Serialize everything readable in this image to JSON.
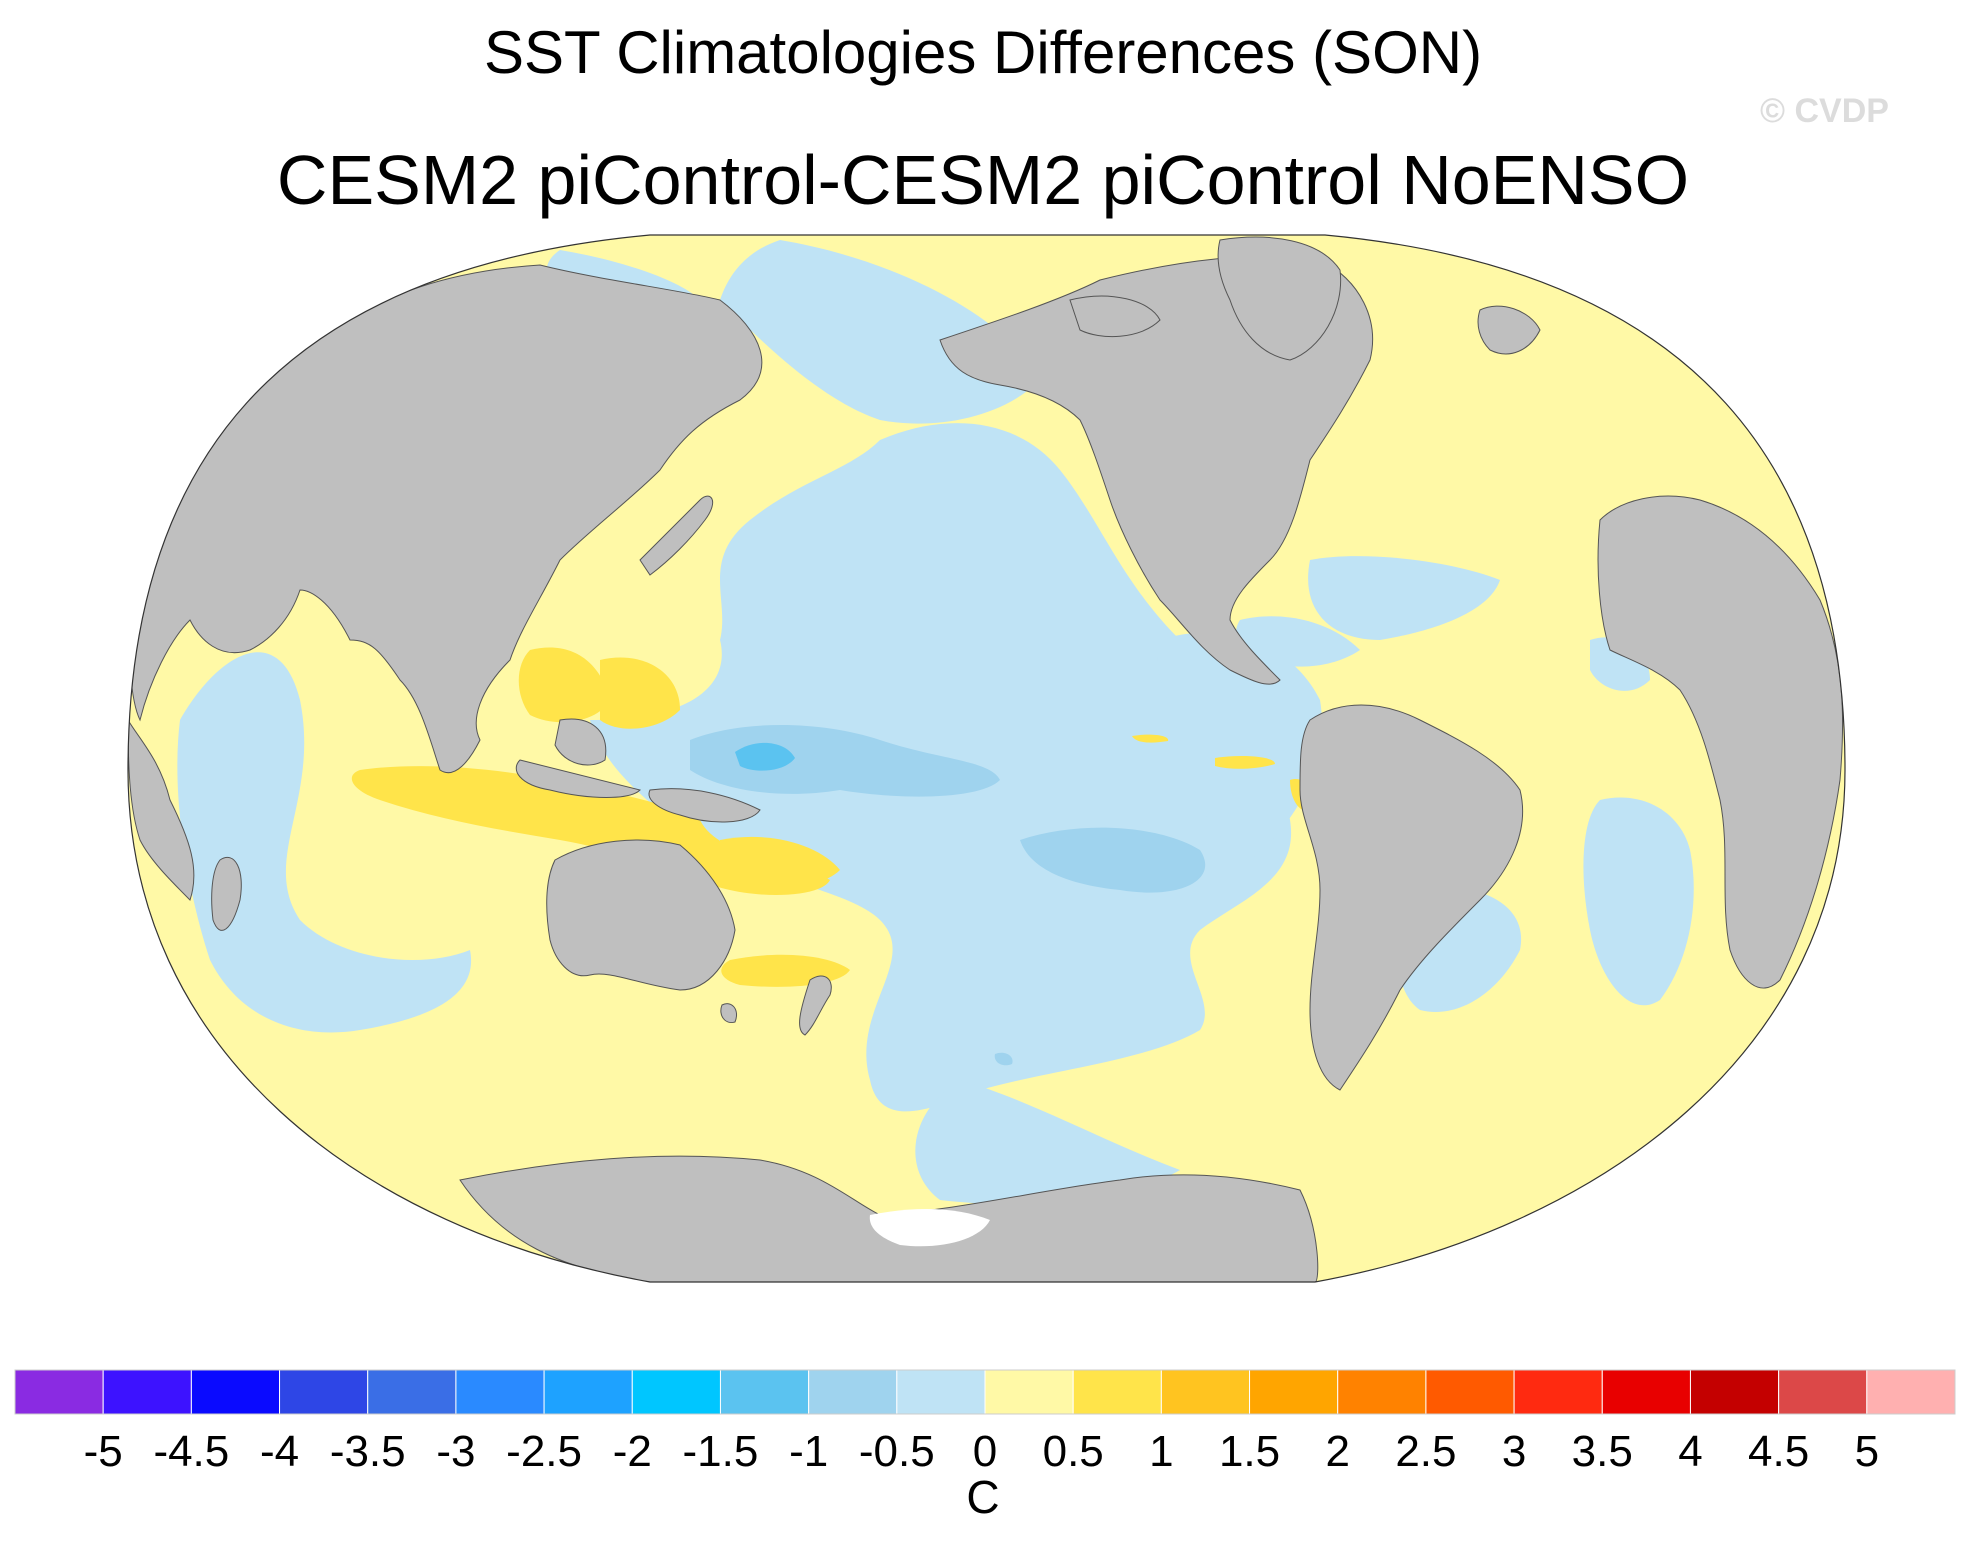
{
  "title": "SST Climatologies Differences (SON)",
  "subtitle": "CESM2 piControl-CESM2 piControl NoENSO",
  "watermark": "© CVDP",
  "colors": {
    "land": "#bfbfbf",
    "ocean_missing": "#ffffff",
    "pos_0_05": "#fff9a6",
    "pos_05_1": "#ffe44a",
    "neg_0_05": "#bfe3f5",
    "neg_05_1": "#9fd3ee",
    "neg_1_15": "#5bc3f0"
  },
  "map": {
    "projection": "Winkel tripel / Robinson-like (Pacific-centered)",
    "field": "SST difference (C)",
    "features": [
      "Positive 0 to 0.5 C over most extratropical oceans",
      "Negative 0 to -0.5 C over central/eastern equatorial Pacific",
      "Negative -0.5 to -1 C patches near date line equator and central South Pacific",
      "Minimum -1 to -1.5 C at western-central equatorial Pacific",
      "Positive 0.5 to 1 C over Maritime Continent and eastern Indian Ocean"
    ]
  },
  "colorbar": {
    "colors": [
      "#8a2be2",
      "#3d12ff",
      "#0a0aff",
      "#2e46e6",
      "#3a6ee6",
      "#2a8aff",
      "#1ea2ff",
      "#00c6ff",
      "#5bc3f0",
      "#9fd3ee",
      "#bfe3f5",
      "#fff9a6",
      "#ffe44a",
      "#ffc420",
      "#ffa500",
      "#ff8200",
      "#ff5a00",
      "#ff2a10",
      "#e80000",
      "#c40000",
      "#dc4848",
      "#ffb0b0"
    ],
    "labels": [
      "-5",
      "-4.5",
      "-4",
      "-3.5",
      "-3",
      "-2.5",
      "-2",
      "-1.5",
      "-1",
      "-0.5",
      "0",
      "0.5",
      "1",
      "1.5",
      "2",
      "2.5",
      "3",
      "3.5",
      "4",
      "4.5",
      "5"
    ],
    "units": "C"
  }
}
